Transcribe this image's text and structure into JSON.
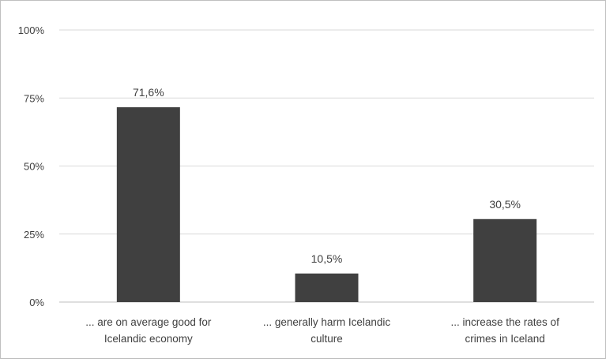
{
  "chart_data": {
    "type": "bar",
    "title": "",
    "xlabel": "",
    "ylabel": "",
    "categories": [
      [
        "... are on average good for",
        "Icelandic economy"
      ],
      [
        "... generally harm Icelandic",
        "culture"
      ],
      [
        "... increase the rates of",
        "crimes in Iceland"
      ]
    ],
    "values": [
      71.6,
      10.5,
      30.5
    ],
    "value_labels": [
      "71,6%",
      "10,5%",
      "30,5%"
    ],
    "ylim": [
      0,
      100
    ],
    "yticks": [
      0,
      25,
      50,
      75,
      100
    ],
    "ytick_labels": [
      "0%",
      "25%",
      "50%",
      "75%",
      "100%"
    ],
    "grid": true,
    "legend": "none",
    "colors": {
      "bar": "#404040",
      "grid": "#d9d9d9",
      "axis": "#bfbfbf",
      "text": "#404040"
    }
  }
}
